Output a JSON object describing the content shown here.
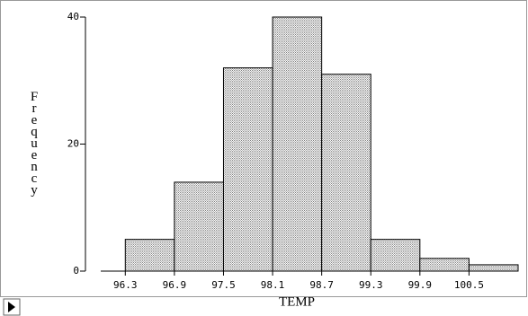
{
  "chart_data": {
    "type": "histogram",
    "x_label": "TEMP",
    "y_label": "Frequency",
    "bins": [
      96.3,
      96.9,
      97.5,
      98.1,
      98.7,
      99.3,
      99.9,
      100.5,
      101.1
    ],
    "values": [
      5,
      14,
      32,
      40,
      31,
      5,
      2,
      1
    ],
    "color": "#d4d4d4",
    "xlim": [
      96.0,
      101.1
    ],
    "xticks": [
      96.3,
      96.9,
      97.5,
      98.1,
      98.7,
      99.3,
      99.9,
      100.5
    ],
    "ylim": [
      0,
      40
    ],
    "yticks": [
      0,
      20,
      40
    ]
  }
}
